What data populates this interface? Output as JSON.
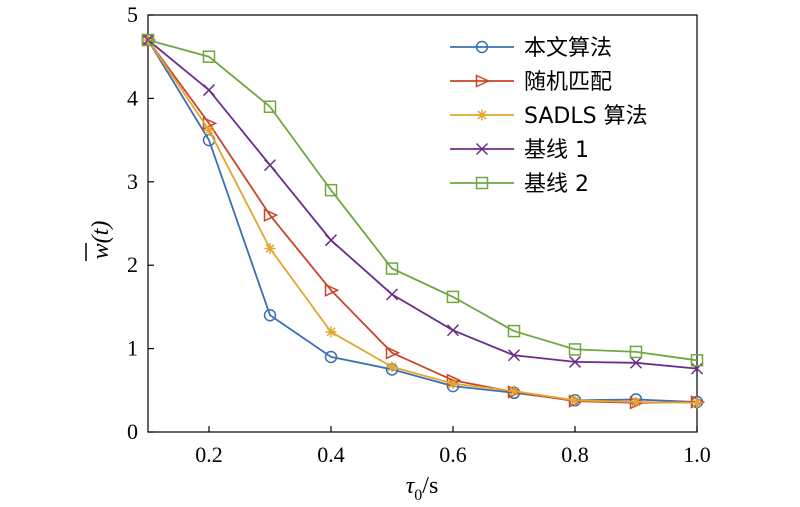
{
  "chart_data": {
    "type": "line",
    "x": [
      0.1,
      0.2,
      0.3,
      0.4,
      0.5,
      0.6,
      0.7,
      0.8,
      0.9,
      1.0
    ],
    "xlim": [
      0.1,
      1.0
    ],
    "ylim": [
      0,
      5
    ],
    "xticks": [
      "0.2",
      "0.4",
      "0.6",
      "0.8",
      "1.0"
    ],
    "xtick_values": [
      0.2,
      0.4,
      0.6,
      0.8,
      1.0
    ],
    "yticks": [
      "0",
      "1",
      "2",
      "3",
      "4",
      "5"
    ],
    "ytick_values": [
      0,
      1,
      2,
      3,
      4,
      5
    ],
    "xlabel": {
      "main": "τ",
      "sub": "0",
      "rest": "/s"
    },
    "ylabel": {
      "main": "w",
      "rest": "(t)"
    },
    "grid": false,
    "legend_position": "top-right",
    "series": [
      {
        "name": "本文算法",
        "color": "#3a6fb5",
        "marker": "circle",
        "values": [
          4.7,
          3.5,
          1.4,
          0.9,
          0.75,
          0.55,
          0.47,
          0.38,
          0.39,
          0.36
        ]
      },
      {
        "name": "随机匹配",
        "color": "#c8452a",
        "marker": "triangle-right",
        "values": [
          4.7,
          3.7,
          2.6,
          1.7,
          0.95,
          0.62,
          0.48,
          0.37,
          0.35,
          0.36
        ]
      },
      {
        "name": "SADLS 算法",
        "color": "#e3a631",
        "marker": "asterisk",
        "values": [
          4.7,
          3.62,
          2.2,
          1.2,
          0.78,
          0.58,
          0.49,
          0.38,
          0.36,
          0.35
        ]
      },
      {
        "name": "基线 1",
        "color": "#6b2d8a",
        "marker": "x",
        "values": [
          4.7,
          4.1,
          3.2,
          2.3,
          1.65,
          1.22,
          0.92,
          0.84,
          0.83,
          0.76
        ]
      },
      {
        "name": "基线 2",
        "color": "#6fa83f",
        "marker": "square",
        "values": [
          4.7,
          4.5,
          3.9,
          2.9,
          1.96,
          1.62,
          1.21,
          0.99,
          0.96,
          0.86
        ]
      }
    ]
  }
}
